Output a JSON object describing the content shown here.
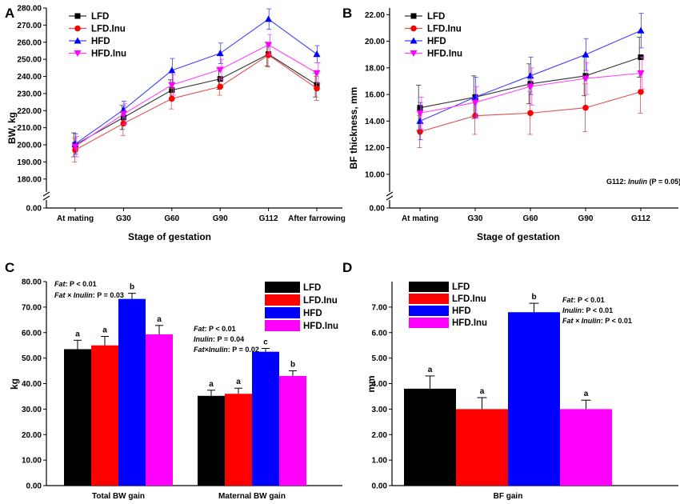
{
  "colors": {
    "LFD": "#000000",
    "LFD.Inu": "#ff0000",
    "HFD": "#0000ff",
    "HFD.Inu": "#ff00ff",
    "LFD_line": "#333333",
    "LFD.Inu_line": "#e05050",
    "HFD_line": "#4040ff",
    "HFD.Inu_line": "#ff40ff"
  },
  "chart_data": [
    {
      "panel": "A",
      "type": "line",
      "ylabel": "BW, kg",
      "xlabel": "Stage of gestation",
      "categories": [
        "At mating",
        "G30",
        "G60",
        "G90",
        "G112",
        "After farrowing"
      ],
      "yticks": [
        "0.00",
        "180.00",
        "190.00",
        "200.00",
        "210.00",
        "220.00",
        "230.00",
        "240.00",
        "250.00",
        "260.00",
        "270.00",
        "280.00"
      ],
      "ylim": [
        175,
        280
      ],
      "axis_break": true,
      "legend": [
        "LFD",
        "LFD.Inu",
        "HFD",
        "HFD.Inu"
      ],
      "series": [
        {
          "name": "LFD",
          "marker": "square",
          "values": [
            200,
            216,
            232,
            238.5,
            253,
            235
          ],
          "err": [
            7,
            7,
            6,
            6,
            7,
            7
          ]
        },
        {
          "name": "LFD.Inu",
          "marker": "circle",
          "values": [
            197,
            212.5,
            227,
            234,
            252.5,
            233
          ],
          "err": [
            7,
            7,
            6,
            5,
            7,
            7
          ]
        },
        {
          "name": "HFD",
          "marker": "triangle-up",
          "values": [
            200.5,
            220.5,
            243.5,
            253.5,
            273.5,
            253
          ],
          "err": [
            6,
            5,
            7,
            6,
            6,
            5
          ]
        },
        {
          "name": "HFD.Inu",
          "marker": "triangle-down",
          "values": [
            199,
            218,
            235,
            244,
            258.5,
            242
          ],
          "err": [
            6,
            6,
            6,
            6,
            6,
            6
          ]
        }
      ]
    },
    {
      "panel": "B",
      "type": "line",
      "ylabel": "BF thickness, mm",
      "xlabel": "Stage of gestation",
      "categories": [
        "At mating",
        "G30",
        "G60",
        "G90",
        "G112"
      ],
      "yticks": [
        "0.00",
        "10.00",
        "12.00",
        "14.00",
        "16.00",
        "18.00",
        "20.00",
        "22.00"
      ],
      "ylim": [
        9,
        22.5
      ],
      "axis_break": true,
      "legend": [
        "LFD",
        "LFD.Inu",
        "HFD",
        "HFD.Inu"
      ],
      "annotation_label": "G112: ",
      "annotation_term": "Inulin",
      "annotation_p": " (P = 0.05)",
      "series": [
        {
          "name": "LFD",
          "marker": "square",
          "values": [
            15.0,
            15.8,
            16.8,
            17.4,
            18.8
          ],
          "err": [
            1.7,
            1.6,
            1.5,
            1.5,
            1.5
          ]
        },
        {
          "name": "LFD.Inu",
          "marker": "circle",
          "values": [
            13.2,
            14.4,
            14.6,
            15.0,
            16.2
          ],
          "err": [
            1.2,
            1.4,
            1.6,
            1.8,
            1.6
          ]
        },
        {
          "name": "HFD",
          "marker": "triangle-up",
          "values": [
            14.0,
            15.8,
            17.4,
            19.0,
            20.8
          ],
          "err": [
            1.4,
            1.5,
            1.4,
            1.2,
            1.3
          ]
        },
        {
          "name": "HFD.Inu",
          "marker": "triangle-down",
          "values": [
            14.6,
            15.4,
            16.6,
            17.2,
            17.6
          ],
          "err": [
            1.2,
            1.2,
            1.4,
            1.2,
            1.2
          ]
        }
      ]
    },
    {
      "panel": "C",
      "type": "bar",
      "ylabel": "kg",
      "categories": [
        "Total BW gain",
        "Maternal BW gain"
      ],
      "yticks": [
        "0.00",
        "10.00",
        "20.00",
        "30.00",
        "40.00",
        "50.00",
        "60.00",
        "70.00",
        "80.00"
      ],
      "ylim": [
        0,
        80
      ],
      "legend": [
        "LFD",
        "LFD.Inu",
        "HFD",
        "HFD.Inu"
      ],
      "series": [
        {
          "name": "LFD",
          "values": [
            53.5,
            35.2
          ],
          "err": [
            3.5,
            2.2
          ],
          "letters": [
            "a",
            "a"
          ]
        },
        {
          "name": "LFD.Inu",
          "values": [
            55.0,
            36.0
          ],
          "err": [
            3.5,
            2.2
          ],
          "letters": [
            "a",
            "a"
          ]
        },
        {
          "name": "HFD",
          "values": [
            73.2,
            52.5
          ],
          "err": [
            2.2,
            1.3
          ],
          "letters": [
            "b",
            "c"
          ]
        },
        {
          "name": "HFD.Inu",
          "values": [
            59.3,
            43.0
          ],
          "err": [
            3.5,
            2.0
          ],
          "letters": [
            "a",
            "b"
          ]
        }
      ],
      "stats_total": [
        {
          "term": "Fat",
          "p": ": P < 0.01"
        },
        {
          "term": "Fat × Inulin",
          "p": ": P = 0.03"
        }
      ],
      "stats_maternal": [
        {
          "term": "Fat",
          "p": ": P < 0.01"
        },
        {
          "term": "Inulin",
          "p": ": P = 0.04"
        },
        {
          "term": "Fat×Inulin",
          "p": ": P = 0.02"
        }
      ]
    },
    {
      "panel": "D",
      "type": "bar",
      "ylabel": "mm",
      "categories": [
        "BF gain"
      ],
      "yticks": [
        "0.00",
        "1.00",
        "2.00",
        "3.00",
        "4.00",
        "5.00",
        "6.00",
        "7.00"
      ],
      "ylim": [
        0,
        8
      ],
      "legend": [
        "LFD",
        "LFD.Inu",
        "HFD",
        "HFD.Inu"
      ],
      "series": [
        {
          "name": "LFD",
          "values": [
            3.8
          ],
          "err": [
            0.5
          ],
          "letters": [
            "a"
          ]
        },
        {
          "name": "LFD.Inu",
          "values": [
            3.0
          ],
          "err": [
            0.45
          ],
          "letters": [
            "a"
          ]
        },
        {
          "name": "HFD",
          "values": [
            6.8
          ],
          "err": [
            0.35
          ],
          "letters": [
            "b"
          ]
        },
        {
          "name": "HFD.Inu",
          "values": [
            3.0
          ],
          "err": [
            0.35
          ],
          "letters": [
            "a"
          ]
        }
      ],
      "stats": [
        {
          "term": "Fat",
          "p": ": P < 0.01"
        },
        {
          "term": "Inulin",
          "p": ": P < 0.01"
        },
        {
          "term": "Fat × Inulin",
          "p": ": P < 0.01"
        }
      ]
    }
  ]
}
